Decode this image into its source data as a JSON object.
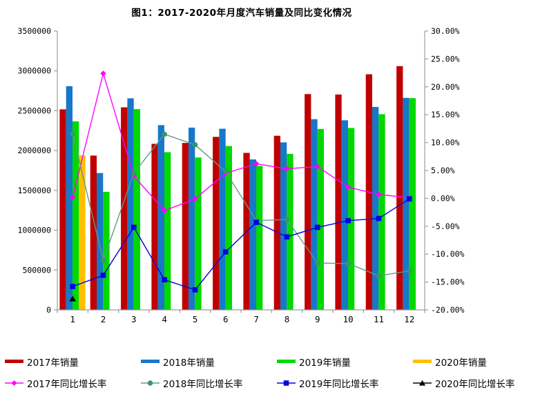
{
  "title": "图1：2017-2020年月度汽车销量及同比变化情况",
  "chart_data": {
    "type": "bar+line-combo",
    "categories": [
      "1",
      "2",
      "3",
      "4",
      "5",
      "6",
      "7",
      "8",
      "9",
      "10",
      "11",
      "12"
    ],
    "left_axis": {
      "min": 0,
      "max": 3500000,
      "tick_step": 500000,
      "tick_labels": [
        "3500000",
        "3000000",
        "2500000",
        "2000000",
        "1500000",
        "1000000",
        "500000",
        "0"
      ]
    },
    "right_axis": {
      "min": -20,
      "max": 30,
      "tick_step": 5,
      "tick_labels": [
        "30.00%",
        "25.00%",
        "20.00%",
        "15.00%",
        "10.00%",
        "5.00%",
        "0.00%",
        "-5.00%",
        "-10.00%",
        "-15.00%",
        "-20.00%"
      ]
    },
    "grid": "off",
    "legend_position": "bottom",
    "bar_series": [
      {
        "name": "2017年销量",
        "color": "#C00000",
        "values": [
          2518000,
          1937000,
          2543000,
          2084000,
          2096000,
          2172000,
          1971000,
          2186000,
          2709000,
          2704000,
          2958000,
          3060000
        ]
      },
      {
        "name": "2018年销量",
        "color": "#1878C8",
        "values": [
          2809000,
          1718000,
          2656000,
          2319000,
          2288000,
          2274000,
          1889000,
          2103000,
          2394000,
          2380000,
          2548000,
          2661000
        ]
      },
      {
        "name": "2019年销量",
        "color": "#00D800",
        "values": [
          2367000,
          1482000,
          2520000,
          1980000,
          1913000,
          2057000,
          1808000,
          1958000,
          2271000,
          2284000,
          2457000,
          2658000
        ]
      },
      {
        "name": "2020年销量",
        "color": "#FFC000",
        "values": [
          1941000,
          null,
          null,
          null,
          null,
          null,
          null,
          null,
          null,
          null,
          null,
          null
        ]
      }
    ],
    "line_series": [
      {
        "name": "2017年同比增长率",
        "color": "#FF00FF",
        "marker": "diamond",
        "marker_color": "#FF00FF",
        "values": [
          0.2,
          22.4,
          4.0,
          -2.2,
          -0.1,
          4.5,
          6.2,
          5.3,
          5.7,
          2.0,
          0.7,
          0.1
        ]
      },
      {
        "name": "2018年同比增长率",
        "color": "#5E9C88",
        "marker": "circle",
        "marker_color": "#339966",
        "values": [
          11.6,
          -11.1,
          4.5,
          11.5,
          9.6,
          4.8,
          -4.0,
          -3.8,
          -11.6,
          -11.7,
          -13.9,
          -13.0
        ]
      },
      {
        "name": "2019年同比增长率",
        "color": "#0000D0",
        "marker": "square",
        "marker_color": "#0000E6",
        "values": [
          -15.8,
          -13.8,
          -5.2,
          -14.6,
          -16.4,
          -9.6,
          -4.3,
          -6.9,
          -5.2,
          -4.0,
          -3.6,
          -0.1
        ]
      },
      {
        "name": "2020年同比增长率",
        "color": "#000000",
        "marker": "triangle",
        "marker_color": "#000000",
        "values": [
          -18.0,
          null,
          null,
          null,
          null,
          null,
          null,
          null,
          null,
          null,
          null,
          null
        ]
      }
    ],
    "axis_color": "#9C9C9C"
  }
}
